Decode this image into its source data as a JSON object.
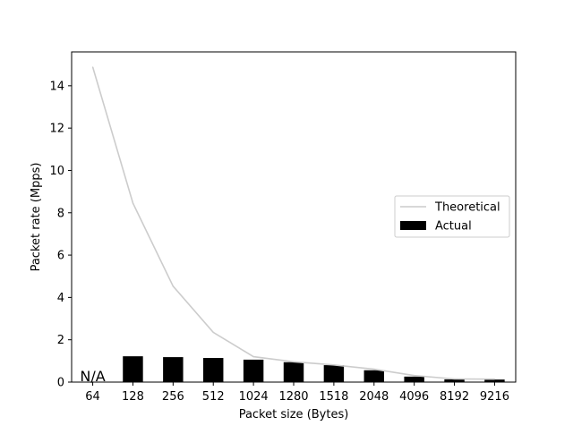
{
  "chart_data": {
    "type": "bar",
    "xlabel": "Packet size (Bytes)",
    "ylabel": "Packet rate (Mpps)",
    "categories": [
      "64",
      "128",
      "256",
      "512",
      "1024",
      "1280",
      "1518",
      "2048",
      "4096",
      "8192",
      "9216"
    ],
    "ylim": [
      0,
      15.6
    ],
    "yticks": [
      0,
      2,
      4,
      6,
      8,
      10,
      12,
      14
    ],
    "grid": false,
    "legend_position": "center-right",
    "annotations": [
      {
        "text": "N/A",
        "category": "64"
      }
    ],
    "series": [
      {
        "name": "Theoretical",
        "type": "line",
        "color": "#cccccc",
        "values": [
          14.88,
          8.45,
          4.53,
          2.35,
          1.2,
          0.96,
          0.81,
          0.61,
          0.31,
          0.15,
          0.14
        ]
      },
      {
        "name": "Actual",
        "type": "bar",
        "color": "#000000",
        "values": [
          null,
          1.22,
          1.18,
          1.14,
          1.06,
          0.94,
          0.8,
          0.56,
          0.26,
          0.13,
          0.12
        ]
      }
    ]
  }
}
